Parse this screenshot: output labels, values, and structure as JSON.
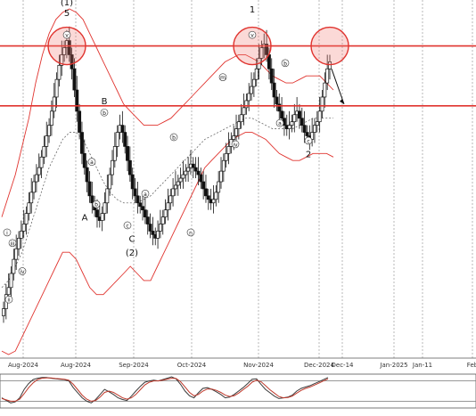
{
  "chart_data": {
    "type": "candlestick",
    "title": "",
    "xlabel": "",
    "ylabel": "",
    "grid": true,
    "x_ticks": [
      "Aug-2024",
      "Aug-2024",
      "Sep-2024",
      "Oct-2024",
      "Nov-2024",
      "Dec-2024",
      "Dec-14",
      "Jan-2025",
      "Jan-11",
      "Feb"
    ],
    "main_panel": {
      "ylim": [
        0,
        100
      ],
      "horizontal_levels": [
        {
          "name": "upper-resistance",
          "value": 88.5,
          "color": "#e0342f"
        },
        {
          "name": "lower-resistance",
          "value": 71.5,
          "color": "#e0342f"
        }
      ],
      "highlight_circles": 3,
      "wave_labels": [
        {
          "text": "(1)",
          "x": 75,
          "y": 100
        },
        {
          "text": "5",
          "x": 75,
          "y": 97
        },
        {
          "text": "v",
          "x": 75,
          "y": 91
        },
        {
          "text": "B",
          "x": 117,
          "y": 72
        },
        {
          "text": "b",
          "x": 117,
          "y": 69
        },
        {
          "text": "a",
          "x": 103,
          "y": 55
        },
        {
          "text": "b",
          "x": 108,
          "y": 43
        },
        {
          "text": "A",
          "x": 95,
          "y": 39
        },
        {
          "text": "C",
          "x": 148,
          "y": 33
        },
        {
          "text": "(2)",
          "x": 148,
          "y": 29
        },
        {
          "text": "c",
          "x": 143,
          "y": 37
        },
        {
          "text": "a",
          "x": 163,
          "y": 46
        },
        {
          "text": "b",
          "x": 195,
          "y": 62
        },
        {
          "text": "n",
          "x": 214,
          "y": 35
        },
        {
          "text": "m",
          "x": 250,
          "y": 79
        },
        {
          "text": "iv",
          "x": 264,
          "y": 60
        },
        {
          "text": "1",
          "x": 283,
          "y": 98
        },
        {
          "text": "v",
          "x": 283,
          "y": 91
        },
        {
          "text": "b",
          "x": 320,
          "y": 83
        },
        {
          "text": "a",
          "x": 314,
          "y": 66
        },
        {
          "text": "c",
          "x": 346,
          "y": 61
        },
        {
          "text": "2",
          "x": 346,
          "y": 57
        },
        {
          "text": "i",
          "x": 8,
          "y": 35
        },
        {
          "text": "iii",
          "x": 14,
          "y": 32
        },
        {
          "text": "iv",
          "x": 25,
          "y": 24
        },
        {
          "text": "ii",
          "x": 10,
          "y": 16
        }
      ],
      "projection_arrow": {
        "from": [
          372,
          82
        ],
        "to": [
          386,
          72
        ]
      },
      "series": [
        {
          "name": "price",
          "close": [
            14,
            18,
            20,
            24,
            28,
            31,
            34,
            36,
            38,
            41,
            44,
            47,
            50,
            52,
            54,
            57,
            60,
            63,
            66,
            70,
            74,
            79,
            83,
            86,
            88,
            90,
            86,
            82,
            76,
            70,
            64,
            58,
            54,
            50,
            46,
            44,
            42,
            40,
            39,
            41,
            44,
            48,
            52,
            56,
            60,
            64,
            66,
            64,
            60,
            56,
            52,
            48,
            46,
            44,
            43,
            42,
            40,
            38,
            36,
            35,
            34,
            36,
            38,
            40,
            42,
            44,
            46,
            48,
            49,
            50,
            51,
            52,
            53,
            54,
            55,
            54,
            53,
            52,
            50,
            48,
            46,
            45,
            44,
            45,
            47,
            50,
            53,
            56,
            58,
            60,
            62,
            63,
            65,
            67,
            69,
            71,
            73,
            75,
            77,
            79,
            82,
            85,
            88,
            89,
            86,
            82,
            78,
            74,
            72,
            70,
            68,
            66,
            65,
            66,
            67,
            69,
            70,
            68,
            66,
            64,
            63,
            62,
            64,
            66,
            67,
            70,
            74,
            78,
            82,
            84
          ]
        },
        {
          "name": "bollinger-upper",
          "values": [
            40,
            46,
            52,
            60,
            68,
            78,
            86,
            92,
            96,
            98,
            99,
            98,
            96,
            92,
            88,
            84,
            80,
            76,
            72,
            70,
            68,
            66,
            66,
            66,
            67,
            68,
            70,
            72,
            74,
            76,
            78,
            80,
            82,
            84,
            85,
            86,
            86,
            85,
            84,
            82,
            80,
            79,
            78,
            78,
            79,
            80,
            80,
            80,
            78,
            76
          ]
        },
        {
          "name": "bollinger-mid",
          "values": [
            20,
            22,
            26,
            30,
            36,
            42,
            48,
            54,
            58,
            62,
            64,
            64,
            62,
            58,
            54,
            50,
            47,
            45,
            44,
            44,
            44,
            45,
            46,
            48,
            50,
            52,
            54,
            56,
            58,
            60,
            62,
            63,
            64,
            65,
            66,
            67,
            68,
            68,
            67,
            66,
            65,
            65,
            65,
            65,
            66,
            67,
            68,
            68,
            68,
            68
          ]
        },
        {
          "name": "bollinger-lower",
          "values": [
            2,
            1,
            2,
            6,
            10,
            14,
            18,
            22,
            26,
            30,
            30,
            28,
            24,
            20,
            18,
            18,
            20,
            22,
            24,
            26,
            24,
            22,
            22,
            26,
            30,
            34,
            38,
            42,
            46,
            50,
            54,
            56,
            58,
            60,
            62,
            63,
            64,
            64,
            63,
            62,
            60,
            58,
            57,
            56,
            56,
            57,
            58,
            58,
            58,
            57
          ]
        }
      ]
    },
    "oscillator_panel": {
      "ylim": [
        0,
        100
      ],
      "levels": [
        80,
        20
      ],
      "series": [
        {
          "name": "k-line",
          "color": "#3a3a3a",
          "values": [
            30,
            22,
            15,
            18,
            30,
            55,
            72,
            84,
            88,
            90,
            90,
            88,
            86,
            85,
            84,
            80,
            60,
            45,
            30,
            20,
            15,
            25,
            40,
            55,
            48,
            40,
            30,
            25,
            22,
            35,
            50,
            64,
            76,
            80,
            82,
            80,
            84,
            88,
            92,
            86,
            70,
            50,
            36,
            30,
            45,
            58,
            60,
            55,
            48,
            40,
            30,
            32,
            40,
            50,
            60,
            72,
            85,
            86,
            70,
            55,
            45,
            35,
            28,
            30,
            32,
            38,
            50,
            58,
            62,
            66,
            72,
            78,
            84,
            90
          ]
        },
        {
          "name": "d-line",
          "color": "#c0392b",
          "values": [
            28,
            24,
            20,
            20,
            26,
            42,
            60,
            74,
            84,
            88,
            89,
            89,
            87,
            86,
            85,
            82,
            70,
            54,
            38,
            26,
            20,
            22,
            32,
            46,
            50,
            46,
            38,
            30,
            26,
            30,
            40,
            54,
            68,
            76,
            80,
            80,
            82,
            85,
            88,
            87,
            78,
            62,
            46,
            36,
            40,
            50,
            56,
            56,
            52,
            46,
            38,
            34,
            36,
            44,
            54,
            64,
            76,
            82,
            78,
            66,
            54,
            44,
            34,
            30,
            31,
            35,
            44,
            52,
            58,
            62,
            68,
            74,
            80,
            86
          ]
        }
      ]
    }
  }
}
